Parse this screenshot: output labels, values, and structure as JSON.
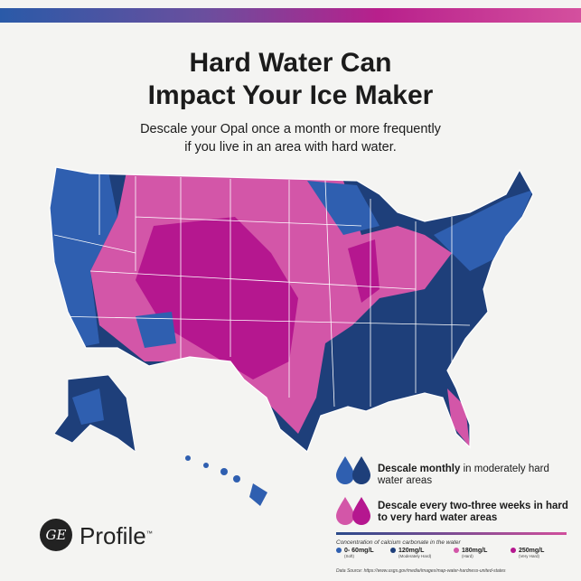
{
  "header": {
    "title_line1": "Hard Water Can",
    "title_line2": "Impact Your Ice Maker",
    "subtitle_line1": "Descale your Opal once a month or more frequently",
    "subtitle_line2": "if you live in an area with hard water."
  },
  "legend": {
    "blue": {
      "bold": "Descale monthly",
      "rest": " in moderately hard water areas"
    },
    "pink": {
      "bold": "Descale every two-three weeks in hard to very hard water areas"
    },
    "concentration_label": "Concentration of calcium carbonate in the water",
    "keys": [
      {
        "value": "0- 60mg/L",
        "desc": "(Soft)",
        "color": "#2f5fb0"
      },
      {
        "value": "120mg/L",
        "desc": "(Moderately Hard)",
        "color": "#1e3f7a"
      },
      {
        "value": "180mg/L",
        "desc": "(Hard)",
        "color": "#d356a8"
      },
      {
        "value": "250mg/L",
        "desc": "(Very Hard)",
        "color": "#b5178f"
      }
    ],
    "source": "Data Source: https://www.usgs.gov/media/images/map-water-hardness-united-states"
  },
  "brand": {
    "logo": "GE",
    "name": "Profile",
    "tm": "™"
  },
  "colors": {
    "soft": "#2f5fb0",
    "moderate": "#1e3f7a",
    "hard": "#d356a8",
    "very_hard": "#b5178f"
  }
}
